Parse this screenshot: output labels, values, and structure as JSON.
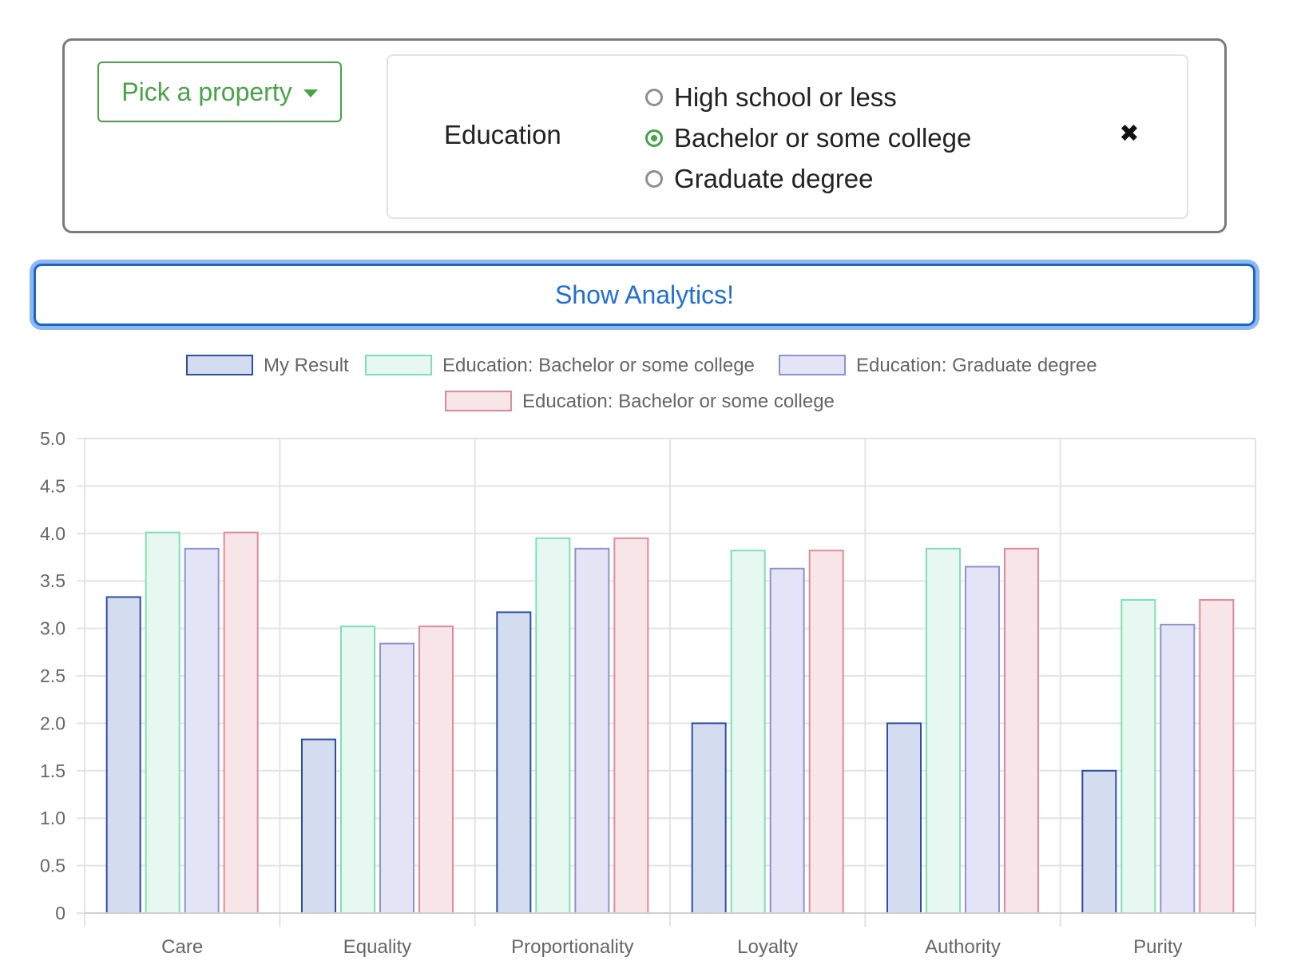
{
  "filter": {
    "pick_property_label": "Pick a property",
    "property_name": "Education",
    "options": [
      {
        "label": "High school or less",
        "checked": false
      },
      {
        "label": "Bachelor or some college",
        "checked": true
      },
      {
        "label": "Graduate degree",
        "checked": false
      }
    ],
    "remove_icon": "✖"
  },
  "analytics_button_label": "Show Analytics!",
  "chart_data": {
    "type": "bar",
    "categories": [
      "Care",
      "Equality",
      "Proportionality",
      "Loyalty",
      "Authority",
      "Purity"
    ],
    "ylim": [
      0,
      5
    ],
    "yticks": [
      "0",
      "0.5",
      "1.0",
      "1.5",
      "2.0",
      "2.5",
      "3.0",
      "3.5",
      "4.0",
      "4.5",
      "5.0"
    ],
    "grid": true,
    "legend_position": "top",
    "series": [
      {
        "name": "My Result",
        "values": [
          3.33,
          1.83,
          3.17,
          2.0,
          2.0,
          1.5
        ],
        "fill": "#d3ddef",
        "stroke": "#2c4fa3"
      },
      {
        "name": "Education: Bachelor or some college",
        "values": [
          4.01,
          3.02,
          3.95,
          3.82,
          3.84,
          3.3
        ],
        "fill": "#e6f8f1",
        "stroke": "#7fe0b8"
      },
      {
        "name": "Education: Graduate degree",
        "values": [
          3.84,
          2.84,
          3.84,
          3.63,
          3.65,
          3.04
        ],
        "fill": "#e3e4f6",
        "stroke": "#8d93d2"
      },
      {
        "name": "Education: Bachelor or some college",
        "values": [
          4.01,
          3.02,
          3.95,
          3.82,
          3.84,
          3.3
        ],
        "fill": "#f7e5e8",
        "stroke": "#e08b9a"
      }
    ]
  }
}
